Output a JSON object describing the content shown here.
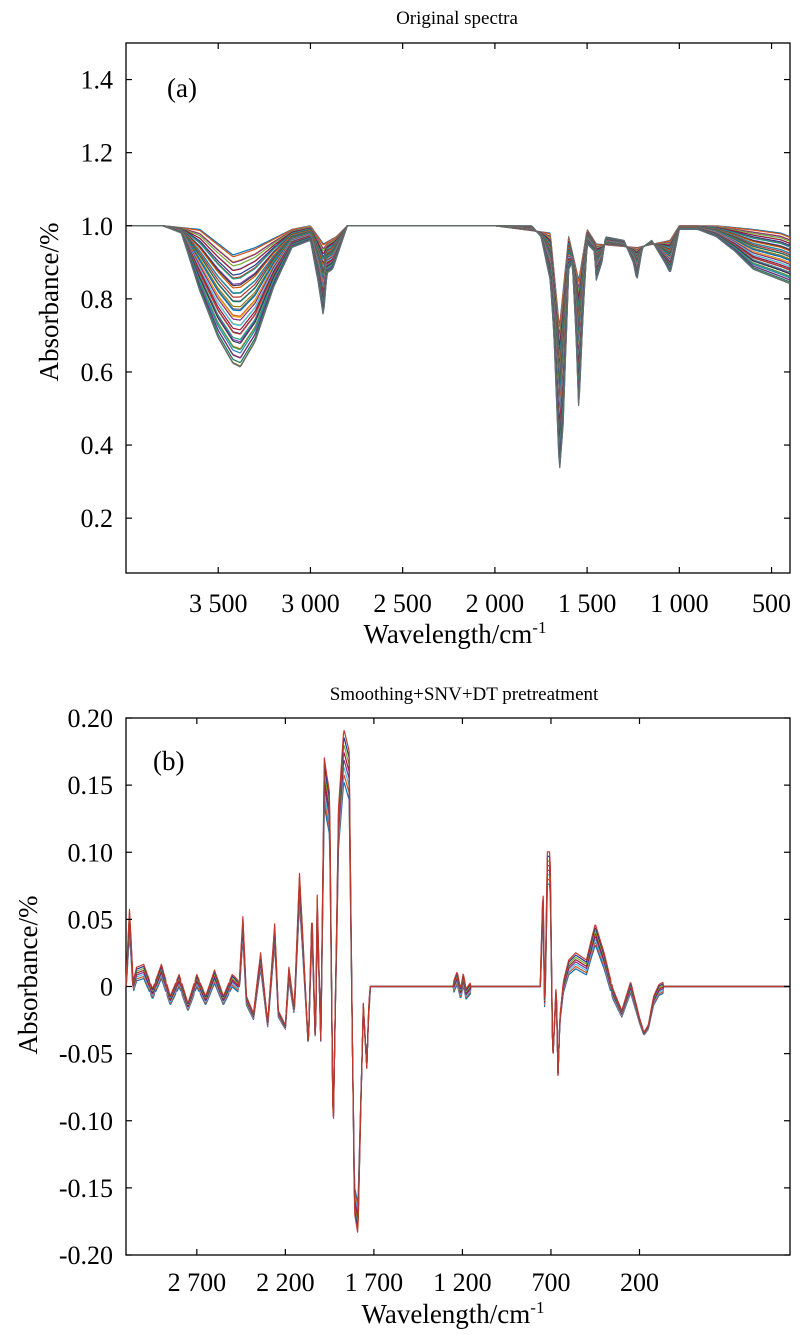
{
  "figure": {
    "panels": [
      {
        "id": "a",
        "title": "Original spectra",
        "panel_label": "(a)",
        "xlabel": "Wavelength/cm",
        "xlabel_sup": "-1",
        "ylabel": "Absorbance/%",
        "y_ticks": [
          "0.2",
          "0.4",
          "0.6",
          "0.8",
          "1.0",
          "1.2",
          "1.4"
        ],
        "x_ticks": [
          "3 500",
          "3 000",
          "2 500",
          "2 000",
          "1 500",
          "1 000",
          "500"
        ]
      },
      {
        "id": "b",
        "title": "Smoothing+SNV+DT pretreatment",
        "panel_label": "(b)",
        "xlabel": "Wavelength/cm",
        "xlabel_sup": "-1",
        "ylabel": "Absorbance/%",
        "y_ticks": [
          "-0.20",
          "-0.15",
          "-0.10",
          "-0.05",
          "0",
          "0.05",
          "0.10",
          "0.15",
          "0.20"
        ],
        "x_ticks": [
          "2 700",
          "2 200",
          "1 700",
          "1 200",
          "700",
          "200"
        ]
      }
    ]
  },
  "chart_data": [
    {
      "type": "line",
      "title": "Original spectra",
      "panel_label": "(a)",
      "xlabel": "Wavelength/cm-1",
      "ylabel": "Absorbance/%",
      "xlim": [
        4000,
        400
      ],
      "x_reversed": true,
      "ylim": [
        0.05,
        1.5
      ],
      "y_ticks": [
        0.2,
        0.4,
        0.6,
        0.8,
        1.0,
        1.2,
        1.4
      ],
      "x_ticks": [
        3500,
        3000,
        2500,
        2000,
        1500,
        1000,
        500
      ],
      "grid": false,
      "legend": "none",
      "series_count_approx": 40,
      "min_envelope": {
        "x": [
          4000,
          3800,
          3700,
          3600,
          3500,
          3420,
          3380,
          3300,
          3200,
          3100,
          3000,
          2960,
          2930,
          2910,
          2880,
          2860,
          2800,
          2500,
          2400,
          2000,
          1800,
          1750,
          1700,
          1680,
          1650,
          1630,
          1600,
          1580,
          1560,
          1545,
          1520,
          1500,
          1460,
          1450,
          1420,
          1400,
          1300,
          1250,
          1230,
          1200,
          1150,
          1080,
          1050,
          1040,
          1000,
          900,
          800,
          700,
          600,
          500,
          450,
          400
        ],
        "y": [
          1.0,
          1.0,
          0.98,
          0.82,
          0.69,
          0.62,
          0.61,
          0.68,
          0.83,
          0.94,
          0.96,
          0.85,
          0.75,
          0.87,
          0.88,
          0.91,
          1.0,
          1.0,
          1.0,
          1.0,
          1.0,
          0.97,
          0.85,
          0.7,
          0.32,
          0.45,
          0.88,
          0.9,
          0.7,
          0.49,
          0.78,
          0.95,
          0.93,
          0.85,
          0.9,
          0.97,
          0.96,
          0.9,
          0.85,
          0.94,
          0.96,
          0.9,
          0.87,
          0.89,
          0.99,
          0.99,
          0.97,
          0.93,
          0.88,
          0.86,
          0.85,
          0.84
        ]
      },
      "max_envelope": {
        "x": [
          4000,
          3800,
          3600,
          3420,
          3300,
          3100,
          3000,
          2930,
          2860,
          2800,
          2000,
          1700,
          1650,
          1600,
          1545,
          1500,
          1450,
          1230,
          1050,
          1000,
          800,
          600,
          450,
          400
        ],
        "y": [
          1.0,
          1.0,
          0.99,
          0.92,
          0.94,
          0.99,
          1.0,
          0.95,
          0.97,
          1.0,
          1.0,
          0.98,
          0.72,
          0.97,
          0.85,
          0.99,
          0.95,
          0.94,
          0.96,
          1.0,
          1.0,
          0.99,
          0.98,
          0.97
        ]
      }
    },
    {
      "type": "line",
      "title": "Smoothing+SNV+DT pretreatment",
      "panel_label": "(b)",
      "xlabel": "Wavelength/cm-1",
      "ylabel": "Absorbance/%",
      "xlim": [
        3100,
        -650
      ],
      "x_reversed": true,
      "ylim": [
        -0.2,
        0.2
      ],
      "y_ticks": [
        -0.2,
        -0.15,
        -0.1,
        -0.05,
        0,
        0.05,
        0.1,
        0.15,
        0.2
      ],
      "x_ticks": [
        2700,
        2200,
        1700,
        1200,
        700,
        200
      ],
      "grid": false,
      "legend": "none",
      "series_count_approx": 8,
      "representative_series": {
        "x": [
          3100,
          3080,
          3060,
          3040,
          3000,
          2950,
          2900,
          2850,
          2800,
          2750,
          2700,
          2650,
          2600,
          2550,
          2500,
          2460,
          2440,
          2420,
          2380,
          2340,
          2300,
          2260,
          2240,
          2200,
          2180,
          2150,
          2120,
          2070,
          2050,
          2030,
          2020,
          2000,
          1980,
          1950,
          1930,
          1900,
          1870,
          1860,
          1840,
          1810,
          1790,
          1760,
          1740,
          1730,
          1720,
          1700,
          1690,
          1680,
          1670,
          1650,
          1640,
          1600,
          1400,
          1250,
          1230,
          1210,
          1195,
          1180,
          1150,
          900,
          800,
          760,
          745,
          735,
          720,
          705,
          690,
          670,
          660,
          650,
          630,
          600,
          560,
          500,
          450,
          400,
          350,
          300,
          250,
          200,
          175,
          150,
          120,
          90,
          60,
          30,
          0,
          -50,
          -100,
          -150,
          -170,
          -200,
          -250,
          -300,
          -400,
          -500,
          -650
        ],
        "y": [
          0.0,
          0.05,
          0.0,
          0.01,
          0.012,
          -0.005,
          0.012,
          -0.01,
          0.005,
          -0.015,
          0.005,
          -0.01,
          0.008,
          -0.01,
          0.005,
          0.0,
          0.045,
          -0.01,
          -0.022,
          0.02,
          -0.028,
          0.04,
          -0.02,
          -0.03,
          0.01,
          -0.018,
          0.075,
          -0.045,
          0.05,
          -0.045,
          0.06,
          -0.04,
          0.155,
          0.13,
          -0.11,
          0.12,
          0.175,
          0.17,
          0.16,
          -0.16,
          -0.175,
          -0.015,
          -0.06,
          -0.02,
          0.0,
          0.0,
          0.0,
          0.0,
          0.0,
          0.0,
          0.0,
          0.0,
          0.0,
          0.0,
          0.007,
          -0.005,
          0.006,
          -0.005,
          0.0,
          0.0,
          0.0,
          0.0,
          0.068,
          -0.02,
          0.09,
          0.09,
          -0.055,
          0.0,
          -0.065,
          -0.025,
          0.0,
          0.015,
          0.02,
          0.015,
          0.04,
          0.02,
          -0.005,
          -0.02,
          0.0,
          -0.025,
          -0.035,
          -0.03,
          -0.01,
          -0.002,
          0.0,
          0.0,
          0.0,
          0.0,
          0.0,
          0.0,
          0.0,
          0.0,
          0.0,
          0.0,
          0.0,
          0.0,
          0.0
        ]
      }
    }
  ]
}
